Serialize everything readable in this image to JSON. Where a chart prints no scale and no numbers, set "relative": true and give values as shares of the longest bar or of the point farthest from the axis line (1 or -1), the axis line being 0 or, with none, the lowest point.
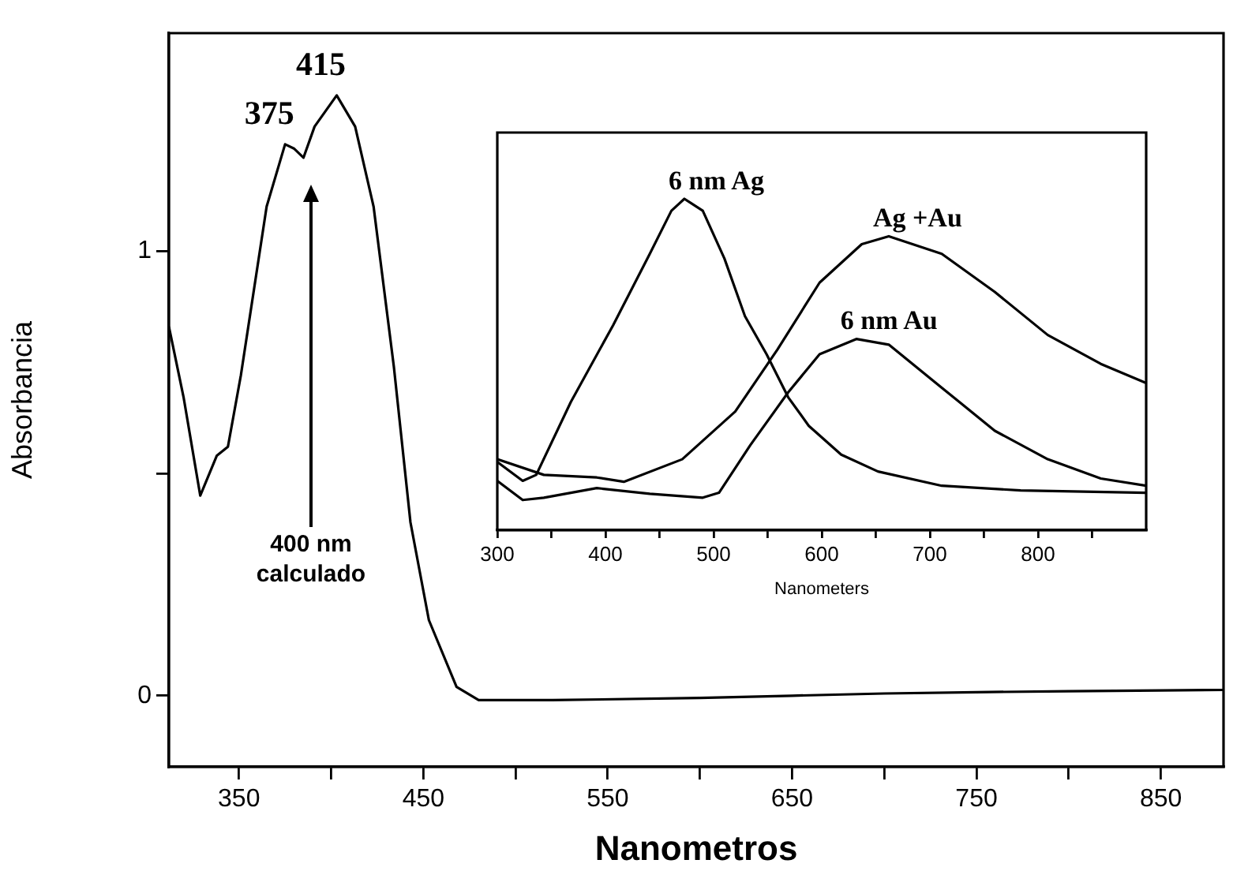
{
  "chart_data": [
    {
      "type": "line",
      "xlabel": "Nanometros",
      "ylabel": "Absorbancia",
      "xlim": [
        312,
        884
      ],
      "ylim": [
        -0.16,
        1.49
      ],
      "xticks": [
        350,
        {
          "value": 400,
          "label": null
        },
        450,
        {
          "value": 500,
          "label": null
        },
        550,
        {
          "value": 600,
          "label": null
        },
        650,
        {
          "value": 700,
          "label": null
        },
        750,
        {
          "value": 800,
          "label": null
        },
        850
      ],
      "yticks": [
        0,
        {
          "value": 0.5,
          "label": null
        },
        1
      ],
      "grid": false,
      "legend": false,
      "marker": "none",
      "line_style": "solid",
      "annotations": [
        {
          "text": "375",
          "x": 375,
          "y": 1.24
        },
        {
          "text": "415",
          "x": 403,
          "y": 1.35
        },
        "400 nm calculado"
      ],
      "x": [
        312,
        320,
        329,
        338,
        344,
        351,
        365,
        375,
        380,
        385,
        391,
        403,
        413,
        423,
        434,
        443,
        453,
        468,
        480,
        520,
        600,
        650,
        700,
        750,
        800,
        850,
        884
      ],
      "series": [
        {
          "color": "#000000",
          "values": [
            0.83,
            0.67,
            0.45,
            0.54,
            0.56,
            0.72,
            1.1,
            1.24,
            1.23,
            1.21,
            1.28,
            1.35,
            1.28,
            1.1,
            0.74,
            0.39,
            0.17,
            0.02,
            -0.01,
            -0.01,
            -0.005,
            0,
            0.005,
            0.008,
            0.01,
            0.012,
            0.013
          ]
        }
      ]
    },
    {
      "type": "line",
      "xlabel": "Nanometers",
      "relative": true,
      "tick_labels": "x",
      "xlim": [
        300,
        900
      ],
      "xticks": [
        300,
        {
          "value": 350,
          "label": null
        },
        400,
        {
          "value": 450,
          "label": null
        },
        500,
        {
          "value": 550,
          "label": null
        },
        600,
        {
          "value": 650,
          "label": null
        },
        700,
        {
          "value": 750,
          "label": null
        },
        800,
        {
          "value": 850,
          "label": null
        }
      ],
      "grid": false,
      "legend": false,
      "marker": "none",
      "line_style": "solid",
      "series": [
        {
          "name": "6 nm Ag",
          "color": "#000000",
          "x": [
            300,
            323.5,
            336,
            368,
            407,
            441,
            461,
            473,
            490,
            510,
            529,
            549,
            569,
            588,
            618,
            652,
            711,
            784,
            900
          ],
          "values": [
            0.206,
            0.149,
            0.167,
            0.387,
            0.618,
            0.834,
            0.964,
            1.0,
            0.964,
            0.82,
            0.646,
            0.531,
            0.401,
            0.315,
            0.228,
            0.177,
            0.134,
            0.12,
            0.113
          ]
        },
        {
          "name": "Ag +Au",
          "color": "#000000",
          "x": [
            300,
            343,
            392,
            417,
            471,
            520,
            559,
            598,
            637,
            662,
            711,
            760,
            809,
            858,
            900
          ],
          "values": [
            0.214,
            0.167,
            0.159,
            0.146,
            0.214,
            0.358,
            0.545,
            0.747,
            0.863,
            0.887,
            0.834,
            0.719,
            0.589,
            0.502,
            0.444
          ]
        },
        {
          "name": "6 nm Au",
          "color": "#000000",
          "x": [
            300,
            323.5,
            343,
            392,
            441,
            490,
            505,
            534,
            569,
            598,
            632,
            662,
            711,
            760,
            809,
            858,
            900
          ],
          "values": [
            0.149,
            0.091,
            0.098,
            0.127,
            0.11,
            0.098,
            0.113,
            0.257,
            0.416,
            0.531,
            0.577,
            0.56,
            0.43,
            0.3,
            0.214,
            0.156,
            0.134
          ]
        }
      ]
    }
  ]
}
